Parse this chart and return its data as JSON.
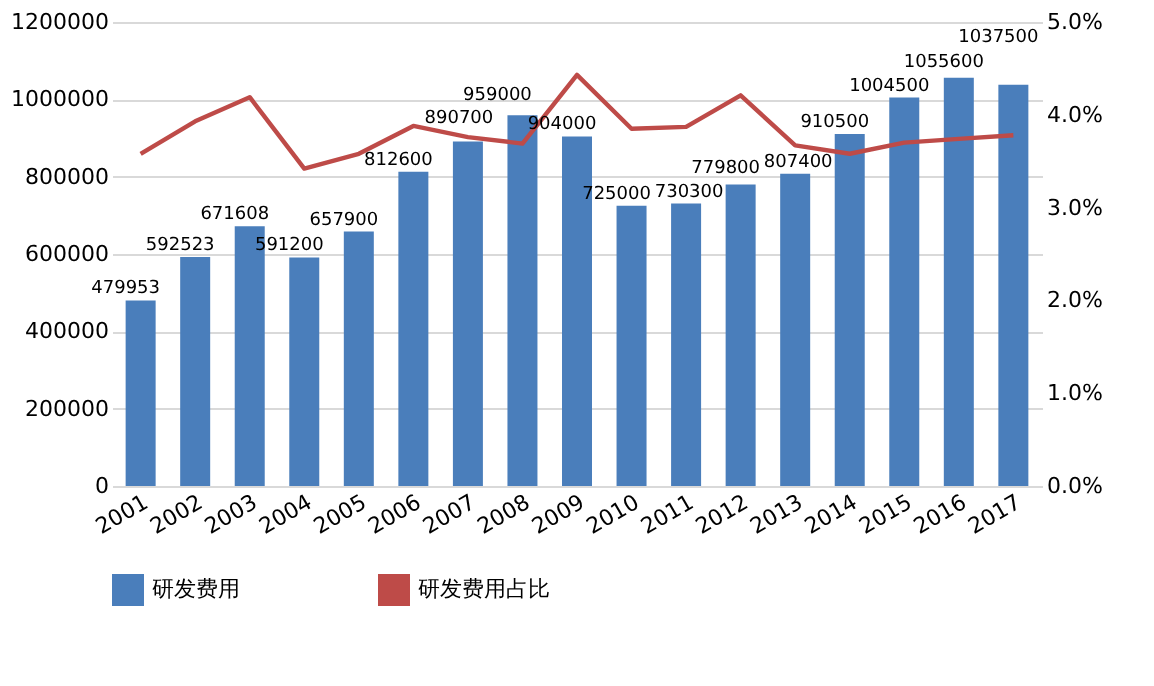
{
  "chart_data": {
    "type": "bar",
    "categories": [
      "2001",
      "2002",
      "2003",
      "2004",
      "2005",
      "2006",
      "2007",
      "2008",
      "2009",
      "2010",
      "2011",
      "2012",
      "2013",
      "2014",
      "2015",
      "2016",
      "2017"
    ],
    "series": [
      {
        "name": "研发费用",
        "type": "bar",
        "color": "#4a7ebb",
        "data_labels": true,
        "values": [
          479953,
          592523,
          671608,
          591200,
          657900,
          812600,
          890700,
          959000,
          904000,
          725000,
          730300,
          779800,
          807400,
          910500,
          1004500,
          1055600,
          1037500
        ]
      },
      {
        "name": "研发费用占比",
        "type": "line",
        "axis": "y2",
        "color": "#be4b48",
        "values": [
          3.58,
          3.93,
          4.19,
          3.42,
          3.58,
          3.88,
          3.76,
          3.69,
          4.43,
          3.85,
          3.87,
          4.21,
          3.67,
          3.58,
          3.7,
          3.74,
          3.78
        ]
      }
    ],
    "ylim": [
      0,
      1200000
    ],
    "yticks": [
      0,
      200000,
      400000,
      600000,
      800000,
      1000000,
      1200000
    ],
    "y2lim": [
      0,
      5
    ],
    "y2ticks": [
      {
        "value": 0,
        "label": "0.0%"
      },
      {
        "value": 1,
        "label": "1.0%"
      },
      {
        "value": 2,
        "label": "2.0%"
      },
      {
        "value": 3,
        "label": "3.0%"
      },
      {
        "value": 4,
        "label": "4.0%"
      },
      {
        "value": 5,
        "label": "5.0%"
      }
    ],
    "grid": "y",
    "legend": "bottom",
    "marker": "none",
    "line_style": "solid"
  }
}
